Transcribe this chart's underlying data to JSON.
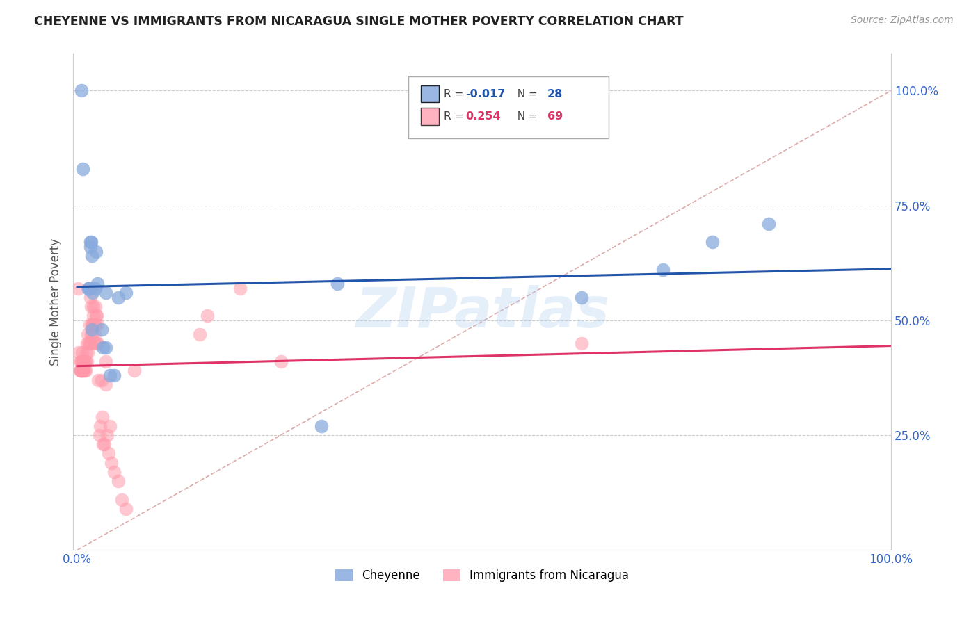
{
  "title": "CHEYENNE VS IMMIGRANTS FROM NICARAGUA SINGLE MOTHER POVERTY CORRELATION CHART",
  "source": "Source: ZipAtlas.com",
  "ylabel": "Single Mother Poverty",
  "legend_label1": "Cheyenne",
  "legend_label2": "Immigrants from Nicaragua",
  "R1": -0.017,
  "N1": 28,
  "R2": 0.254,
  "N2": 69,
  "watermark": "ZIPatlas",
  "color_blue": "#88AADD",
  "color_pink": "#FF99AA",
  "color_blue_line": "#2255AA",
  "color_pink_line": "#DD3366",
  "color_diag": "#DDAAAA",
  "blue_x": [
    0.005,
    0.007,
    0.014,
    0.014,
    0.016,
    0.016,
    0.017,
    0.018,
    0.019,
    0.022,
    0.023,
    0.025,
    0.03,
    0.032,
    0.035,
    0.035,
    0.04,
    0.045,
    0.05,
    0.06,
    0.3,
    0.32,
    0.62,
    0.72,
    0.78,
    0.85,
    0.015,
    0.018
  ],
  "blue_y": [
    1.0,
    0.83,
    0.57,
    0.57,
    0.66,
    0.67,
    0.67,
    0.64,
    0.56,
    0.57,
    0.65,
    0.58,
    0.48,
    0.44,
    0.44,
    0.56,
    0.38,
    0.38,
    0.55,
    0.56,
    0.27,
    0.58,
    0.55,
    0.61,
    0.67,
    0.71,
    0.57,
    0.48
  ],
  "pink_x": [
    0.001,
    0.002,
    0.003,
    0.003,
    0.004,
    0.004,
    0.005,
    0.005,
    0.005,
    0.006,
    0.006,
    0.007,
    0.007,
    0.008,
    0.008,
    0.009,
    0.009,
    0.01,
    0.01,
    0.011,
    0.012,
    0.012,
    0.013,
    0.013,
    0.014,
    0.015,
    0.015,
    0.016,
    0.016,
    0.017,
    0.017,
    0.018,
    0.018,
    0.019,
    0.019,
    0.02,
    0.02,
    0.021,
    0.021,
    0.022,
    0.022,
    0.023,
    0.024,
    0.024,
    0.025,
    0.025,
    0.026,
    0.027,
    0.028,
    0.03,
    0.031,
    0.032,
    0.033,
    0.035,
    0.035,
    0.037,
    0.038,
    0.04,
    0.042,
    0.045,
    0.05,
    0.055,
    0.06,
    0.07,
    0.15,
    0.16,
    0.2,
    0.25,
    0.62
  ],
  "pink_y": [
    0.57,
    0.43,
    0.39,
    0.41,
    0.39,
    0.39,
    0.39,
    0.41,
    0.41,
    0.39,
    0.43,
    0.39,
    0.41,
    0.41,
    0.39,
    0.39,
    0.41,
    0.39,
    0.41,
    0.43,
    0.41,
    0.45,
    0.43,
    0.47,
    0.45,
    0.45,
    0.49,
    0.45,
    0.55,
    0.47,
    0.53,
    0.47,
    0.49,
    0.49,
    0.49,
    0.51,
    0.53,
    0.47,
    0.45,
    0.49,
    0.53,
    0.51,
    0.45,
    0.51,
    0.45,
    0.49,
    0.37,
    0.25,
    0.27,
    0.37,
    0.29,
    0.23,
    0.23,
    0.36,
    0.41,
    0.25,
    0.21,
    0.27,
    0.19,
    0.17,
    0.15,
    0.11,
    0.09,
    0.39,
    0.47,
    0.51,
    0.57,
    0.41,
    0.45
  ]
}
